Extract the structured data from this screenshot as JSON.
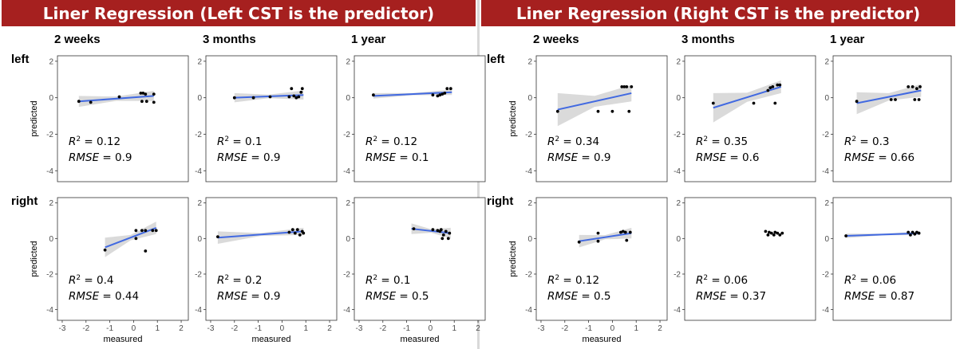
{
  "banners": {
    "left": "Liner Regression (Left CST is the predictor)",
    "right": "Liner Regression (Right CST is the predictor)"
  },
  "column_headers": [
    "2 weeks",
    "3 months",
    "1 year"
  ],
  "row_headers": [
    "left",
    "right"
  ],
  "colors": {
    "banner": "#a6201f",
    "fit_line": "#4169e1",
    "ci_band": "#d3d3d3",
    "points": "#000000"
  },
  "chart_data": [
    {
      "type": "scatter",
      "predictor": "Left CST",
      "row": "left",
      "column": "2 weeks",
      "xlabel": "",
      "ylabel": "predicted",
      "xlim": [
        -3.2,
        2.3
      ],
      "ylim": [
        -4.6,
        2.3
      ],
      "x_ticks": [
        -3,
        -2,
        -1,
        0,
        1,
        2
      ],
      "y_ticks": [
        -4,
        -2,
        0,
        2
      ],
      "show_x_ticks": false,
      "points": [
        [
          -2.3,
          -0.2
        ],
        [
          -1.8,
          -0.25
        ],
        [
          -0.6,
          0.05
        ],
        [
          0.3,
          0.25
        ],
        [
          0.4,
          0.25
        ],
        [
          0.5,
          0.2
        ],
        [
          0.35,
          -0.2
        ],
        [
          0.55,
          -0.2
        ],
        [
          0.85,
          0.2
        ],
        [
          0.85,
          -0.25
        ]
      ],
      "fit": {
        "x": [
          -2.3,
          0.85
        ],
        "y": [
          -0.2,
          0.1
        ]
      },
      "ci": [
        0.3,
        0.12,
        0.28
      ],
      "annotation": {
        "r2": "0.12",
        "rmse": "0.9"
      }
    },
    {
      "type": "scatter",
      "predictor": "Left CST",
      "row": "left",
      "column": "3 months",
      "xlabel": "",
      "ylabel": "",
      "xlim": [
        -3.2,
        2.3
      ],
      "ylim": [
        -4.6,
        2.3
      ],
      "x_ticks": [
        -3,
        -2,
        -1,
        0,
        1,
        2
      ],
      "y_ticks": [
        -4,
        -2,
        0,
        2
      ],
      "show_x_ticks": false,
      "points": [
        [
          -2.0,
          0.0
        ],
        [
          -1.2,
          0.0
        ],
        [
          -0.5,
          0.05
        ],
        [
          0.3,
          0.05
        ],
        [
          0.4,
          0.5
        ],
        [
          0.5,
          0.1
        ],
        [
          0.6,
          0.0
        ],
        [
          0.7,
          0.05
        ],
        [
          0.8,
          0.3
        ],
        [
          0.85,
          0.5
        ]
      ],
      "fit": {
        "x": [
          -2.0,
          0.9
        ],
        "y": [
          0.0,
          0.15
        ]
      },
      "ci": [
        0.25,
        0.1,
        0.25
      ],
      "annotation": {
        "r2": "0.1",
        "rmse": "0.9"
      }
    },
    {
      "type": "scatter",
      "predictor": "Left CST",
      "row": "left",
      "column": "1 year",
      "xlabel": "",
      "ylabel": "",
      "xlim": [
        -3.2,
        2.3
      ],
      "ylim": [
        -4.6,
        2.3
      ],
      "x_ticks": [
        -3,
        -2,
        -1,
        0,
        1,
        2
      ],
      "y_ticks": [
        -4,
        -2,
        0,
        2
      ],
      "show_x_ticks": false,
      "points": [
        [
          -2.4,
          0.15
        ],
        [
          0.1,
          0.15
        ],
        [
          0.3,
          0.1
        ],
        [
          0.4,
          0.15
        ],
        [
          0.5,
          0.2
        ],
        [
          0.6,
          0.25
        ],
        [
          0.7,
          0.5
        ],
        [
          0.85,
          0.5
        ]
      ],
      "fit": {
        "x": [
          -2.4,
          0.9
        ],
        "y": [
          0.1,
          0.3
        ]
      },
      "ci": [
        0.15,
        0.06,
        0.15
      ],
      "annotation": {
        "r2": "0.12",
        "rmse": "0.1"
      }
    },
    {
      "type": "scatter",
      "predictor": "Left CST",
      "row": "right",
      "column": "2 weeks",
      "xlabel": "measured",
      "ylabel": "predicted",
      "xlim": [
        -3.2,
        2.3
      ],
      "ylim": [
        -4.6,
        2.3
      ],
      "x_ticks": [
        -3,
        -2,
        -1,
        0,
        1,
        2
      ],
      "y_ticks": [
        -4,
        -2,
        0,
        2
      ],
      "show_x_ticks": true,
      "points": [
        [
          -1.2,
          -0.65
        ],
        [
          0.1,
          0.45
        ],
        [
          0.35,
          0.45
        ],
        [
          0.5,
          0.45
        ],
        [
          0.8,
          0.45
        ],
        [
          0.95,
          0.45
        ],
        [
          0.1,
          0.0
        ],
        [
          0.5,
          -0.7
        ]
      ],
      "fit": {
        "x": [
          -1.2,
          0.95
        ],
        "y": [
          -0.5,
          0.6
        ]
      },
      "ci": [
        0.55,
        0.15,
        0.35
      ],
      "annotation": {
        "r2": "0.4",
        "rmse": "0.44"
      }
    },
    {
      "type": "scatter",
      "predictor": "Left CST",
      "row": "right",
      "column": "3 months",
      "xlabel": "measured",
      "ylabel": "",
      "xlim": [
        -3.2,
        2.3
      ],
      "ylim": [
        -4.6,
        2.3
      ],
      "x_ticks": [
        -3,
        -2,
        -1,
        0,
        1,
        2
      ],
      "y_ticks": [
        -4,
        -2,
        0,
        2
      ],
      "show_x_ticks": true,
      "points": [
        [
          -2.7,
          0.1
        ],
        [
          0.3,
          0.35
        ],
        [
          0.45,
          0.5
        ],
        [
          0.55,
          0.3
        ],
        [
          0.65,
          0.5
        ],
        [
          0.75,
          0.2
        ],
        [
          0.85,
          0.4
        ],
        [
          0.9,
          0.3
        ]
      ],
      "fit": {
        "x": [
          -2.7,
          0.9
        ],
        "y": [
          0.05,
          0.4
        ]
      },
      "ci": [
        0.35,
        0.08,
        0.2
      ],
      "annotation": {
        "r2": "0.2",
        "rmse": "0.9"
      }
    },
    {
      "type": "scatter",
      "predictor": "Left CST",
      "row": "right",
      "column": "1 year",
      "xlabel": "measured",
      "ylabel": "",
      "xlim": [
        -3.2,
        2.3
      ],
      "ylim": [
        -4.6,
        2.3
      ],
      "x_ticks": [
        -3,
        -2,
        -1,
        0,
        1,
        2
      ],
      "y_ticks": [
        -4,
        -2,
        0,
        2
      ],
      "show_x_ticks": true,
      "points": [
        [
          -0.7,
          0.55
        ],
        [
          0.1,
          0.5
        ],
        [
          0.3,
          0.45
        ],
        [
          0.45,
          0.5
        ],
        [
          0.55,
          0.2
        ],
        [
          0.65,
          0.4
        ],
        [
          0.75,
          0.0
        ],
        [
          0.5,
          0.0
        ],
        [
          0.8,
          0.3
        ],
        [
          0.4,
          0.4
        ]
      ],
      "fit": {
        "x": [
          -0.8,
          0.85
        ],
        "y": [
          0.55,
          0.3
        ]
      },
      "ci": [
        0.3,
        0.1,
        0.3
      ],
      "annotation": {
        "r2": "0.1",
        "rmse": "0.5"
      }
    },
    {
      "type": "scatter",
      "predictor": "Right CST",
      "row": "left",
      "column": "2 weeks",
      "xlabel": "",
      "ylabel": "predicted",
      "xlim": [
        -3.2,
        2.3
      ],
      "ylim": [
        -4.6,
        2.3
      ],
      "x_ticks": [
        -3,
        -2,
        -1,
        0,
        1,
        2
      ],
      "y_ticks": [
        -4,
        -2,
        0,
        2
      ],
      "show_x_ticks": false,
      "points": [
        [
          -2.3,
          -0.75
        ],
        [
          -0.6,
          -0.75
        ],
        [
          0.0,
          -0.75
        ],
        [
          0.4,
          0.6
        ],
        [
          0.5,
          0.6
        ],
        [
          0.6,
          0.6
        ],
        [
          0.7,
          -0.75
        ],
        [
          0.8,
          0.6
        ]
      ],
      "fit": {
        "x": [
          -2.3,
          0.8
        ],
        "y": [
          -0.65,
          0.25
        ]
      },
      "ci": [
        0.9,
        0.3,
        0.45
      ],
      "annotation": {
        "r2": "0.34",
        "rmse": "0.9"
      }
    },
    {
      "type": "scatter",
      "predictor": "Right CST",
      "row": "left",
      "column": "3 months",
      "xlabel": "",
      "ylabel": "",
      "xlim": [
        -3.2,
        2.3
      ],
      "ylim": [
        -4.6,
        2.3
      ],
      "x_ticks": [
        -3,
        -2,
        -1,
        0,
        1,
        2
      ],
      "y_ticks": [
        -4,
        -2,
        0,
        2
      ],
      "show_x_ticks": false,
      "points": [
        [
          -2.0,
          -0.3
        ],
        [
          -0.3,
          -0.3
        ],
        [
          0.3,
          0.4
        ],
        [
          0.4,
          0.55
        ],
        [
          0.5,
          0.6
        ],
        [
          0.6,
          -0.3
        ],
        [
          0.7,
          0.7
        ],
        [
          0.8,
          0.7
        ]
      ],
      "fit": {
        "x": [
          -2.0,
          0.85
        ],
        "y": [
          -0.55,
          0.6
        ]
      },
      "ci": [
        0.8,
        0.25,
        0.35
      ],
      "annotation": {
        "r2": "0.35",
        "rmse": "0.6"
      }
    },
    {
      "type": "scatter",
      "predictor": "Right CST",
      "row": "left",
      "column": "1 year",
      "xlabel": "",
      "ylabel": "",
      "xlim": [
        -3.2,
        2.3
      ],
      "ylim": [
        -4.6,
        2.3
      ],
      "x_ticks": [
        -3,
        -2,
        -1,
        0,
        1,
        2
      ],
      "y_ticks": [
        -4,
        -2,
        0,
        2
      ],
      "show_x_ticks": false,
      "points": [
        [
          -2.1,
          -0.2
        ],
        [
          -0.5,
          -0.1
        ],
        [
          -0.3,
          -0.1
        ],
        [
          0.3,
          0.6
        ],
        [
          0.5,
          0.6
        ],
        [
          0.6,
          -0.1
        ],
        [
          0.7,
          0.5
        ],
        [
          0.8,
          -0.1
        ],
        [
          0.85,
          0.6
        ]
      ],
      "fit": {
        "x": [
          -2.1,
          0.9
        ],
        "y": [
          -0.3,
          0.4
        ]
      },
      "ci": [
        0.6,
        0.2,
        0.35
      ],
      "annotation": {
        "r2": "0.3",
        "rmse": "0.66"
      }
    },
    {
      "type": "scatter",
      "predictor": "Right CST",
      "row": "right",
      "column": "2 weeks",
      "xlabel": "measured",
      "ylabel": "predicted",
      "xlim": [
        -3.2,
        2.3
      ],
      "ylim": [
        -4.6,
        2.3
      ],
      "x_ticks": [
        -3,
        -2,
        -1,
        0,
        1,
        2
      ],
      "y_ticks": [
        -4,
        -2,
        0,
        2
      ],
      "show_x_ticks": true,
      "points": [
        [
          -1.4,
          -0.2
        ],
        [
          -0.6,
          0.3
        ],
        [
          -0.6,
          -0.15
        ],
        [
          0.35,
          0.35
        ],
        [
          0.45,
          0.4
        ],
        [
          0.55,
          0.35
        ],
        [
          0.6,
          -0.1
        ],
        [
          0.75,
          0.35
        ]
      ],
      "fit": {
        "x": [
          -1.4,
          0.8
        ],
        "y": [
          -0.15,
          0.3
        ]
      },
      "ci": [
        0.35,
        0.12,
        0.3
      ],
      "annotation": {
        "r2": "0.12",
        "rmse": "0.5"
      }
    },
    {
      "type": "scatter",
      "predictor": "Right CST",
      "row": "right",
      "column": "3 months",
      "xlabel": "measured",
      "ylabel": "",
      "xlim": [
        -3.2,
        2.3
      ],
      "ylim": [
        -4.6,
        2.3
      ],
      "x_ticks": [
        -3,
        -2,
        -1,
        0,
        1,
        2
      ],
      "y_ticks": [
        -4,
        -2,
        0,
        2
      ],
      "show_x_ticks": false,
      "points": [
        [
          0.2,
          0.4
        ],
        [
          0.3,
          0.2
        ],
        [
          0.35,
          0.35
        ],
        [
          0.45,
          0.3
        ],
        [
          0.55,
          0.2
        ],
        [
          0.6,
          0.35
        ],
        [
          0.7,
          0.3
        ],
        [
          0.8,
          0.2
        ],
        [
          0.9,
          0.3
        ]
      ],
      "fit": null,
      "ci": null,
      "annotation": {
        "r2": "0.06",
        "rmse": "0.37"
      }
    },
    {
      "type": "scatter",
      "predictor": "Right CST",
      "row": "right",
      "column": "1 year",
      "xlabel": "measured",
      "ylabel": "",
      "xlim": [
        -3.2,
        2.3
      ],
      "ylim": [
        -4.6,
        2.3
      ],
      "x_ticks": [
        -3,
        -2,
        -1,
        0,
        1,
        2
      ],
      "y_ticks": [
        -4,
        -2,
        0,
        2
      ],
      "show_x_ticks": false,
      "points": [
        [
          -2.6,
          0.15
        ],
        [
          0.3,
          0.35
        ],
        [
          0.4,
          0.2
        ],
        [
          0.5,
          0.35
        ],
        [
          0.6,
          0.25
        ],
        [
          0.7,
          0.35
        ],
        [
          0.8,
          0.3
        ]
      ],
      "fit": {
        "x": [
          -2.6,
          0.85
        ],
        "y": [
          0.15,
          0.3
        ]
      },
      "ci": [
        0.12,
        0.05,
        0.1
      ],
      "annotation": {
        "r2": "0.06",
        "rmse": "0.87"
      }
    }
  ]
}
